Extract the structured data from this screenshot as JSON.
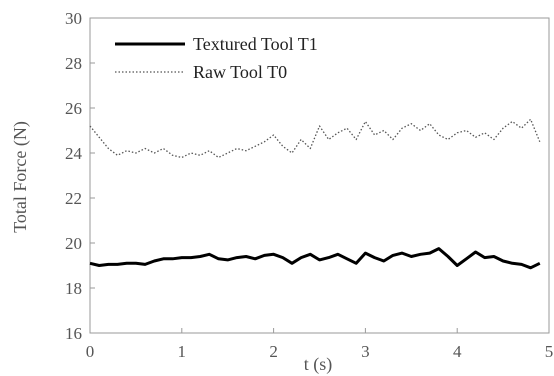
{
  "chart_data": {
    "type": "line",
    "title": "",
    "xlabel": "t (s)",
    "ylabel": "Total Force (N)",
    "xlim": [
      0,
      5
    ],
    "ylim": [
      16,
      30
    ],
    "x_ticks": [
      0,
      1,
      2,
      3,
      4,
      5
    ],
    "y_ticks": [
      16,
      18,
      20,
      22,
      24,
      26,
      28,
      30
    ],
    "grid": false,
    "legend_position": "top-left",
    "series": [
      {
        "name": "Textured Tool T1",
        "style": "solid",
        "color": "#000000",
        "x": [
          0,
          0.1,
          0.2,
          0.3,
          0.4,
          0.5,
          0.6,
          0.7,
          0.8,
          0.9,
          1.0,
          1.1,
          1.2,
          1.3,
          1.4,
          1.5,
          1.6,
          1.7,
          1.8,
          1.9,
          2.0,
          2.1,
          2.2,
          2.3,
          2.4,
          2.5,
          2.6,
          2.7,
          2.8,
          2.9,
          3.0,
          3.1,
          3.2,
          3.3,
          3.4,
          3.5,
          3.6,
          3.7,
          3.8,
          3.9,
          4.0,
          4.1,
          4.2,
          4.3,
          4.4,
          4.5,
          4.6,
          4.7,
          4.8,
          4.9
        ],
        "y": [
          19.1,
          19.0,
          19.05,
          19.05,
          19.1,
          19.1,
          19.05,
          19.2,
          19.3,
          19.3,
          19.35,
          19.35,
          19.4,
          19.5,
          19.3,
          19.25,
          19.35,
          19.4,
          19.3,
          19.45,
          19.5,
          19.35,
          19.1,
          19.35,
          19.5,
          19.25,
          19.35,
          19.5,
          19.3,
          19.1,
          19.55,
          19.35,
          19.2,
          19.45,
          19.55,
          19.4,
          19.5,
          19.55,
          19.75,
          19.4,
          19.0,
          19.3,
          19.6,
          19.35,
          19.4,
          19.2,
          19.1,
          19.05,
          18.9,
          19.1
        ]
      },
      {
        "name": "Raw Tool T0",
        "style": "dotted",
        "color": "#555555",
        "x": [
          0,
          0.1,
          0.2,
          0.3,
          0.4,
          0.5,
          0.6,
          0.7,
          0.8,
          0.9,
          1.0,
          1.1,
          1.2,
          1.3,
          1.4,
          1.5,
          1.6,
          1.7,
          1.8,
          1.9,
          2.0,
          2.1,
          2.2,
          2.3,
          2.4,
          2.5,
          2.6,
          2.7,
          2.8,
          2.9,
          3.0,
          3.1,
          3.2,
          3.3,
          3.4,
          3.5,
          3.6,
          3.7,
          3.8,
          3.9,
          4.0,
          4.1,
          4.2,
          4.3,
          4.4,
          4.5,
          4.6,
          4.7,
          4.8,
          4.9
        ],
        "y": [
          25.2,
          24.7,
          24.2,
          23.9,
          24.1,
          24.0,
          24.2,
          24.0,
          24.2,
          23.9,
          23.8,
          24.0,
          23.9,
          24.1,
          23.8,
          24.0,
          24.2,
          24.1,
          24.3,
          24.5,
          24.8,
          24.3,
          24.0,
          24.6,
          24.2,
          25.2,
          24.6,
          24.9,
          25.1,
          24.6,
          25.4,
          24.8,
          25.0,
          24.6,
          25.1,
          25.3,
          25.0,
          25.3,
          24.8,
          24.6,
          24.9,
          25.0,
          24.7,
          24.9,
          24.6,
          25.1,
          25.4,
          25.1,
          25.5,
          24.5
        ]
      }
    ]
  }
}
